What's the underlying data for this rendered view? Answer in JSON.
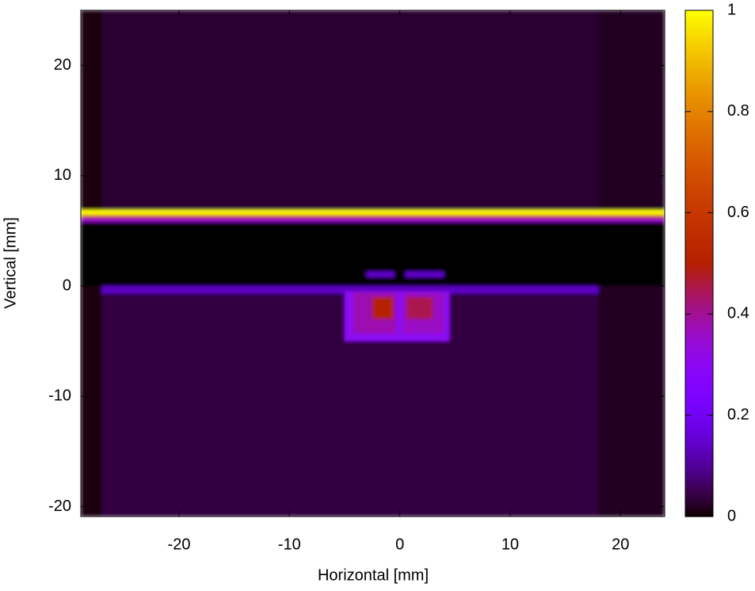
{
  "chart_data": {
    "type": "heatmap",
    "xlabel": "Horizontal [mm]",
    "ylabel": "Vertical [mm]",
    "xlim": [
      -28.9,
      24
    ],
    "ylim": [
      -20.9,
      25
    ],
    "xticks": [
      -20,
      -10,
      0,
      10,
      20
    ],
    "yticks": [
      -20,
      -10,
      0,
      10,
      20
    ],
    "zlim": [
      0,
      1
    ],
    "zticks": [
      0,
      0.2,
      0.4,
      0.6,
      0.8,
      1
    ],
    "cells": [
      {
        "x": [
          -28.9,
          24
        ],
        "y": [
          6.9,
          25
        ],
        "value": 0.03
      },
      {
        "x": [
          -28.9,
          24
        ],
        "y": [
          -20.9,
          -0.7
        ],
        "value": 0.04
      },
      {
        "x": [
          -28.9,
          24
        ],
        "y": [
          -0.7,
          0
        ],
        "value": 0.14
      },
      {
        "x": [
          -28.9,
          -27
        ],
        "y": [
          -20.9,
          25
        ],
        "value": 0.01
      },
      {
        "x": [
          18,
          24
        ],
        "y": [
          -20.9,
          25
        ],
        "value": 0.02
      },
      {
        "x": [
          -28.9,
          24
        ],
        "y": [
          0,
          5.8
        ],
        "value": 0
      },
      {
        "x": [
          -28.9,
          24
        ],
        "y": [
          5.8,
          6.2
        ],
        "value": 0.35
      },
      {
        "x": [
          -28.9,
          24
        ],
        "y": [
          6.2,
          6.45
        ],
        "value": 0.7
      },
      {
        "x": [
          -28.9,
          24
        ],
        "y": [
          6.45,
          6.9
        ],
        "value": 1
      },
      {
        "x": [
          -3,
          -0.5
        ],
        "y": [
          0.8,
          1.3
        ],
        "value": 0.15
      },
      {
        "x": [
          0.5,
          4
        ],
        "y": [
          0.8,
          1.3
        ],
        "value": 0.15
      },
      {
        "x": [
          -5,
          4.5
        ],
        "y": [
          -5,
          -0.5
        ],
        "value": 0.3
      },
      {
        "x": [
          -4.2,
          -0.3
        ],
        "y": [
          -4.3,
          -0.6
        ],
        "value": 0.38
      },
      {
        "x": [
          0.3,
          4
        ],
        "y": [
          -4.3,
          -0.6
        ],
        "value": 0.36
      },
      {
        "x": [
          -2.5,
          -0.6
        ],
        "y": [
          -3,
          -1
        ],
        "value": 0.5
      },
      {
        "x": [
          0.6,
          3
        ],
        "y": [
          -3,
          -1
        ],
        "value": 0.45
      }
    ]
  }
}
